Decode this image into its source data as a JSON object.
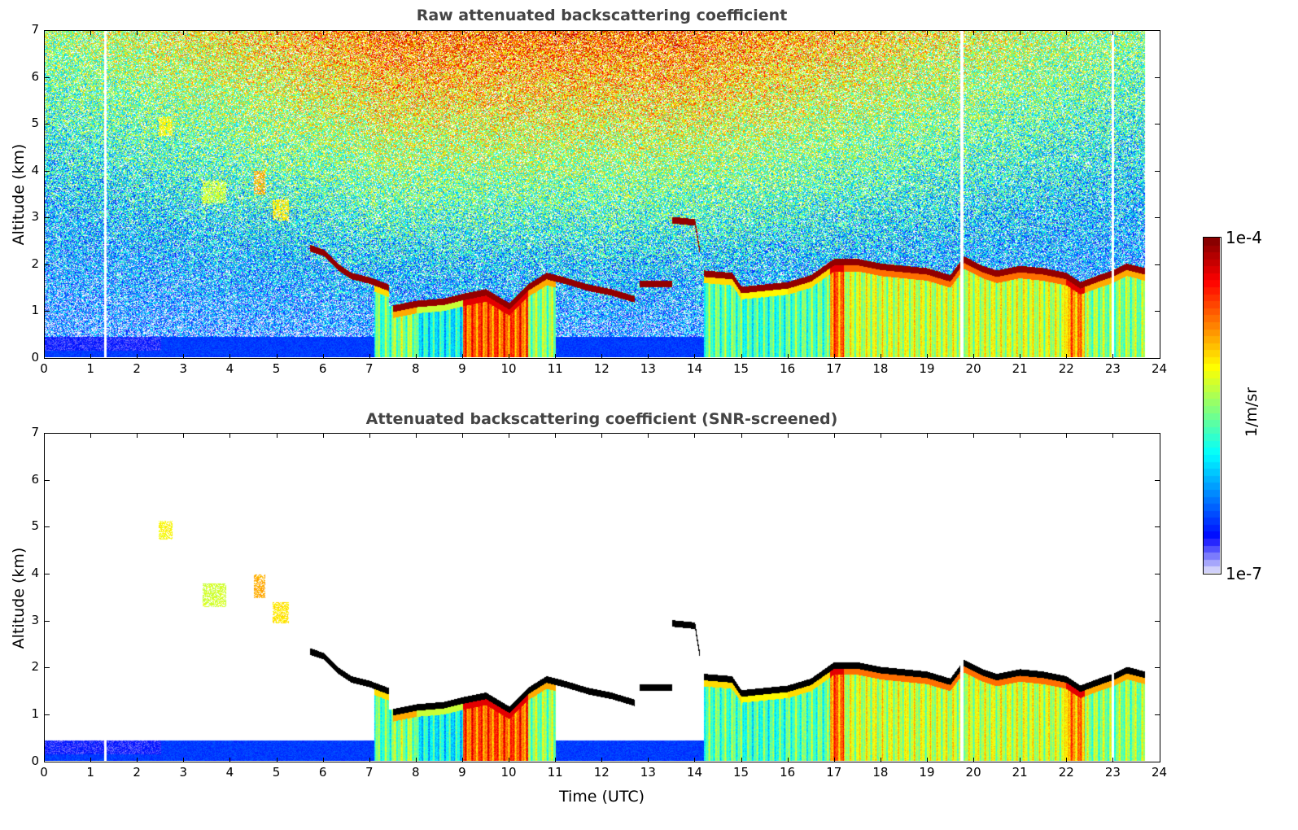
{
  "chart_data": [
    {
      "type": "heatmap",
      "title": "Raw attenuated backscattering coefficient",
      "xlabel": "",
      "ylabel": "Altitude (km)",
      "xlim": [
        0,
        24
      ],
      "ylim": [
        0,
        7
      ],
      "xticks": [
        "0",
        "1",
        "2",
        "3",
        "4",
        "5",
        "6",
        "7",
        "8",
        "9",
        "10",
        "11",
        "12",
        "13",
        "14",
        "15",
        "16",
        "17",
        "18",
        "19",
        "20",
        "21",
        "22",
        "23",
        "24"
      ],
      "yticks": [
        "0",
        "1",
        "2",
        "3",
        "4",
        "5",
        "6",
        "7"
      ],
      "screened": false
    },
    {
      "type": "heatmap",
      "title": "Attenuated backscattering coefficient (SNR-screened)",
      "xlabel": "Time (UTC)",
      "ylabel": "Altitude (km)",
      "xlim": [
        0,
        24
      ],
      "ylim": [
        0,
        7
      ],
      "xticks": [
        "0",
        "1",
        "2",
        "3",
        "4",
        "5",
        "6",
        "7",
        "8",
        "9",
        "10",
        "11",
        "12",
        "13",
        "14",
        "15",
        "16",
        "17",
        "18",
        "19",
        "20",
        "21",
        "22",
        "23",
        "24"
      ],
      "yticks": [
        "0",
        "1",
        "2",
        "3",
        "4",
        "5",
        "6",
        "7"
      ],
      "screened": true
    }
  ],
  "colorbar": {
    "label": "1/m/sr",
    "min_label": "1e-7",
    "max_label": "1e-4",
    "scale": "log",
    "range": [
      1e-07,
      0.0001
    ],
    "colormap": "jet"
  },
  "cloud_layers_km": [
    [
      [
        5.7,
        2.35
      ],
      [
        6.0,
        2.25
      ],
      [
        6.3,
        1.95
      ],
      [
        6.6,
        1.75
      ],
      [
        7.0,
        1.65
      ],
      [
        7.4,
        1.5
      ]
    ],
    [
      [
        7.5,
        1.05
      ],
      [
        8.0,
        1.15
      ],
      [
        8.6,
        1.2
      ],
      [
        9.0,
        1.3
      ],
      [
        9.5,
        1.4
      ],
      [
        10.0,
        1.1
      ],
      [
        10.4,
        1.5
      ],
      [
        10.8,
        1.75
      ],
      [
        11.2,
        1.65
      ],
      [
        11.7,
        1.5
      ],
      [
        12.2,
        1.4
      ],
      [
        12.7,
        1.25
      ]
    ],
    [
      [
        12.8,
        1.58
      ],
      [
        13.5,
        1.58
      ]
    ],
    [
      [
        13.5,
        2.95
      ],
      [
        14.0,
        2.9
      ],
      [
        14.1,
        2.3
      ]
    ],
    [
      [
        14.2,
        1.8
      ],
      [
        14.8,
        1.75
      ],
      [
        15.0,
        1.45
      ],
      [
        15.5,
        1.5
      ],
      [
        16.0,
        1.55
      ],
      [
        16.5,
        1.7
      ],
      [
        17.0,
        2.05
      ],
      [
        17.5,
        2.05
      ],
      [
        18.0,
        1.95
      ],
      [
        18.5,
        1.9
      ],
      [
        19.0,
        1.85
      ],
      [
        19.5,
        1.7
      ],
      [
        19.8,
        2.1
      ],
      [
        20.2,
        1.9
      ],
      [
        20.5,
        1.8
      ],
      [
        21.0,
        1.9
      ],
      [
        21.5,
        1.85
      ],
      [
        22.0,
        1.75
      ],
      [
        22.3,
        1.55
      ],
      [
        22.7,
        1.7
      ],
      [
        23.0,
        1.8
      ],
      [
        23.3,
        1.95
      ],
      [
        23.7,
        1.85
      ]
    ]
  ],
  "subcloud_signal": [
    [
      7.1,
      7.5,
      0.45
    ],
    [
      7.5,
      8.0,
      0.5
    ],
    [
      8.0,
      9.0,
      0.36
    ],
    [
      9.0,
      10.4,
      0.78
    ],
    [
      10.4,
      11.0,
      0.5
    ],
    [
      14.2,
      15.0,
      0.45
    ],
    [
      15.0,
      16.0,
      0.42
    ],
    [
      16.0,
      16.9,
      0.45
    ],
    [
      16.9,
      17.2,
      0.76
    ],
    [
      17.2,
      22.0,
      0.56
    ],
    [
      22.0,
      22.4,
      0.72
    ],
    [
      22.4,
      23.7,
      0.5
    ]
  ],
  "elevated_layers": [
    [
      2.45,
      2.75,
      4.75,
      5.15,
      0.6
    ],
    [
      3.4,
      3.9,
      3.3,
      3.8,
      0.55
    ],
    [
      4.5,
      4.75,
      3.5,
      4.0,
      0.68
    ],
    [
      4.9,
      5.25,
      2.95,
      3.4,
      0.62
    ]
  ],
  "data_end_hour": 23.7,
  "data_gaps_hour": [
    1.3,
    19.75,
    23.0
  ]
}
